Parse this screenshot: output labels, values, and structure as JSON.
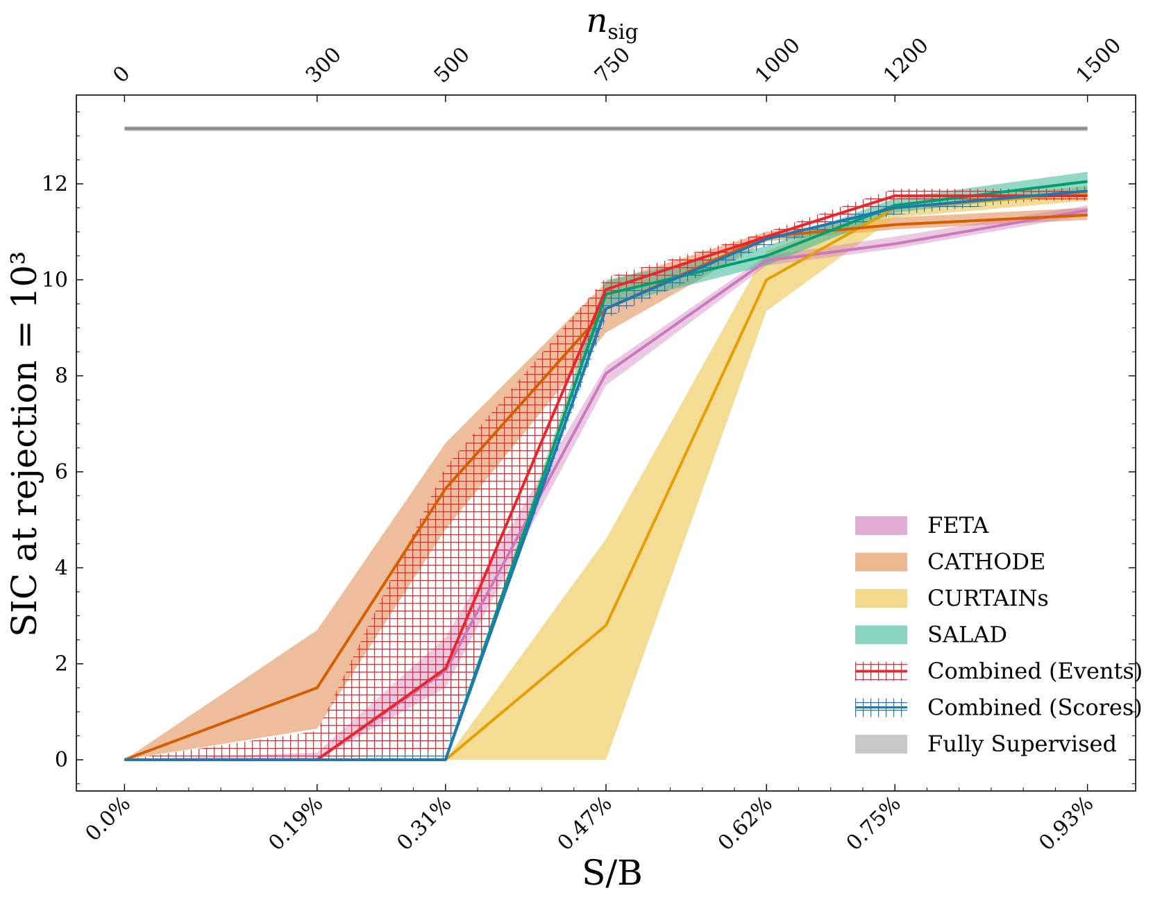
{
  "chart_data": {
    "type": "line",
    "xlabel": "S/B",
    "ylabel": "SIC at rejection = 10³",
    "top_xlabel": "n",
    "top_xlabel_sub": "sig",
    "x": [
      0,
      300,
      500,
      750,
      1000,
      1200,
      1500
    ],
    "x_tick_labels": [
      "0.0%",
      "0.19%",
      "0.31%",
      "0.47%",
      "0.62%",
      "0.75%",
      "0.93%"
    ],
    "top_tick_labels": [
      "0",
      "300",
      "500",
      "750",
      "1000",
      "1200",
      "1500"
    ],
    "xlim": [
      -75,
      1575
    ],
    "ylim": [
      -0.65,
      13.85
    ],
    "y_ticks": [
      0,
      2,
      4,
      6,
      8,
      10,
      12
    ],
    "y_tick_labels": [
      "0",
      "2",
      "4",
      "6",
      "8",
      "10",
      "12"
    ],
    "legend_position": "lower-right",
    "series": [
      {
        "name": "FETA",
        "color": "#cc78bc",
        "band_color": "#cc78bc",
        "band_opacity": 0.4,
        "hatch": false,
        "values": [
          0,
          0,
          1.85,
          8.05,
          10.4,
          10.75,
          11.45
        ],
        "lower": [
          0,
          0,
          1.5,
          7.8,
          10.3,
          10.65,
          11.35
        ],
        "upper": [
          0,
          0.15,
          2.55,
          8.2,
          10.5,
          10.9,
          11.55
        ]
      },
      {
        "name": "CATHODE",
        "color": "#d55e00",
        "band_color": "#e0894a",
        "band_opacity": 0.55,
        "hatch": false,
        "values": [
          0,
          1.5,
          5.65,
          9.4,
          10.9,
          11.15,
          11.35
        ],
        "lower": [
          0,
          0.65,
          4.8,
          8.9,
          10.8,
          11.05,
          11.25
        ],
        "upper": [
          0,
          2.7,
          6.6,
          9.95,
          11.0,
          11.3,
          11.5
        ]
      },
      {
        "name": "CURTAINs",
        "color": "#e69f00",
        "band_color": "#ebbf3e",
        "band_opacity": 0.55,
        "hatch": false,
        "values": [
          0,
          0,
          0,
          2.8,
          10.0,
          11.5,
          11.8
        ],
        "lower": [
          0,
          0,
          0,
          0,
          9.35,
          11.3,
          11.65
        ],
        "upper": [
          0,
          0,
          0,
          4.6,
          10.6,
          11.6,
          11.95
        ]
      },
      {
        "name": "SALAD",
        "color": "#029e73",
        "band_color": "#3ab795",
        "band_opacity": 0.55,
        "hatch": false,
        "values": [
          0,
          0,
          0,
          9.7,
          10.5,
          11.55,
          12.05
        ],
        "lower": [
          0,
          0,
          0,
          9.45,
          10.3,
          11.4,
          11.85
        ],
        "upper": [
          0,
          0,
          0,
          10.0,
          10.7,
          11.7,
          12.25
        ]
      },
      {
        "name": "Combined (Events)",
        "color": "#e8262b",
        "band_color": "#e8262b",
        "band_opacity": 1,
        "hatch": true,
        "values": [
          0,
          0,
          1.9,
          9.8,
          10.9,
          11.75,
          11.75
        ],
        "lower": [
          0,
          0,
          0.2,
          9.6,
          10.8,
          11.65,
          11.65
        ],
        "upper": [
          0,
          0.6,
          6.1,
          10.05,
          11.0,
          11.9,
          11.9
        ]
      },
      {
        "name": "Combined (Scores)",
        "color": "#1f77b4",
        "band_color": "#1f77b4",
        "band_opacity": 1,
        "hatch": true,
        "values": [
          0,
          0,
          0,
          9.4,
          10.85,
          11.5,
          11.85
        ],
        "lower": [
          0,
          0,
          0,
          9.2,
          10.7,
          11.35,
          11.75
        ],
        "upper": [
          0,
          0,
          2.3,
          9.6,
          10.95,
          11.65,
          11.95
        ]
      },
      {
        "name": "Fully Supervised",
        "color": "#8c8c8c",
        "band_color": "#c8c8c8",
        "band_opacity": 1,
        "hatch": false,
        "values": [
          13.15,
          13.15,
          13.15,
          13.15,
          13.15,
          13.15,
          13.15
        ],
        "lower": [
          13.1,
          13.1,
          13.1,
          13.1,
          13.1,
          13.1,
          13.1
        ],
        "upper": [
          13.2,
          13.2,
          13.2,
          13.2,
          13.2,
          13.2,
          13.2
        ]
      }
    ]
  }
}
